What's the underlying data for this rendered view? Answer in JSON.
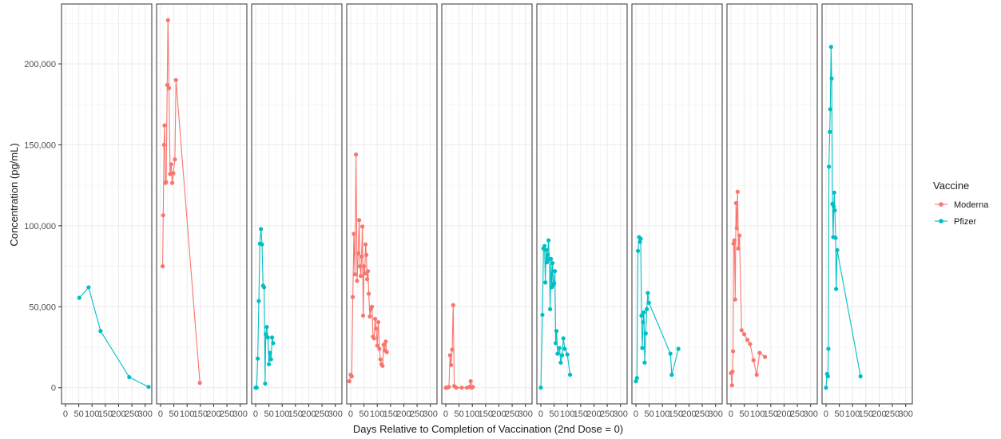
{
  "chart_data": {
    "type": "line",
    "xlabel": "Days Relative to Completion of Vaccination (2nd Dose = 0)",
    "ylabel": "Concentration (pg/mL)",
    "xlim": [
      -15,
      325
    ],
    "ylim": [
      -10000,
      237000
    ],
    "x_ticks": [
      0,
      50,
      100,
      150,
      200,
      250,
      300
    ],
    "y_ticks": [
      0,
      50000,
      100000,
      150000,
      200000
    ],
    "y_tick_labels": [
      "0",
      "50,000",
      "100,000",
      "150,000",
      "200,000"
    ],
    "x_tick_labels": [
      "0",
      "50",
      "100",
      "150",
      "200",
      "250",
      "300"
    ],
    "grid": true,
    "legend": {
      "title": "Vaccine",
      "position": "right",
      "entries": [
        {
          "label": "Moderna",
          "color": "#F8766D"
        },
        {
          "label": "Pfizer",
          "color": "#00BFC4"
        }
      ]
    },
    "panels": [
      {
        "vaccine": "Pfizer",
        "points": [
          [
            52,
            55500
          ],
          [
            87,
            62000
          ],
          [
            132,
            35000
          ],
          [
            240,
            6500
          ],
          [
            313,
            500
          ]
        ]
      },
      {
        "vaccine": "Moderna",
        "points": [
          [
            8,
            75000
          ],
          [
            10,
            106500
          ],
          [
            13,
            150000
          ],
          [
            15,
            162000
          ],
          [
            18,
            126500
          ],
          [
            21,
            127000
          ],
          [
            25,
            187000
          ],
          [
            28,
            227000
          ],
          [
            32,
            185000
          ],
          [
            36,
            132000
          ],
          [
            40,
            138000
          ],
          [
            44,
            126500
          ],
          [
            48,
            132500
          ],
          [
            54,
            141000
          ],
          [
            58,
            190000
          ],
          [
            148,
            3000
          ]
        ]
      },
      {
        "vaccine": "Pfizer",
        "points": [
          [
            0,
            0
          ],
          [
            4,
            0
          ],
          [
            8,
            18000
          ],
          [
            12,
            53500
          ],
          [
            16,
            89000
          ],
          [
            20,
            98000
          ],
          [
            24,
            88500
          ],
          [
            28,
            63000
          ],
          [
            32,
            62000
          ],
          [
            36,
            2500
          ],
          [
            38,
            33000
          ],
          [
            42,
            37500
          ],
          [
            46,
            31000
          ],
          [
            50,
            14500
          ],
          [
            54,
            21500
          ],
          [
            58,
            17500
          ],
          [
            62,
            31000
          ],
          [
            66,
            27500
          ]
        ]
      },
      {
        "vaccine": "Moderna",
        "points": [
          [
            -5,
            4000
          ],
          [
            0,
            8000
          ],
          [
            4,
            7000
          ],
          [
            8,
            56000
          ],
          [
            12,
            95000
          ],
          [
            16,
            70000
          ],
          [
            20,
            144000
          ],
          [
            24,
            66000
          ],
          [
            28,
            83000
          ],
          [
            32,
            103500
          ],
          [
            35,
            75000
          ],
          [
            38,
            69000
          ],
          [
            41,
            81000
          ],
          [
            44,
            99500
          ],
          [
            47,
            44500
          ],
          [
            50,
            75000
          ],
          [
            53,
            70500
          ],
          [
            56,
            88500
          ],
          [
            59,
            82000
          ],
          [
            62,
            67000
          ],
          [
            65,
            72000
          ],
          [
            68,
            58000
          ],
          [
            72,
            44000
          ],
          [
            76,
            48500
          ],
          [
            80,
            50000
          ],
          [
            84,
            31500
          ],
          [
            88,
            30500
          ],
          [
            92,
            42500
          ],
          [
            96,
            36500
          ],
          [
            100,
            26000
          ],
          [
            104,
            40500
          ],
          [
            108,
            24000
          ],
          [
            112,
            17500
          ],
          [
            116,
            14500
          ],
          [
            120,
            13500
          ],
          [
            124,
            26500
          ],
          [
            128,
            23000
          ],
          [
            132,
            28500
          ],
          [
            136,
            22000
          ]
        ]
      },
      {
        "vaccine": "Moderna",
        "points": [
          [
            0,
            0
          ],
          [
            6,
            0
          ],
          [
            12,
            500
          ],
          [
            16,
            20000
          ],
          [
            20,
            14000
          ],
          [
            24,
            23500
          ],
          [
            28,
            51000
          ],
          [
            32,
            1000
          ],
          [
            40,
            0
          ],
          [
            60,
            0
          ],
          [
            80,
            0
          ],
          [
            90,
            500
          ],
          [
            94,
            4000
          ],
          [
            98,
            0
          ],
          [
            102,
            500
          ]
        ]
      },
      {
        "vaccine": "Pfizer",
        "points": [
          [
            0,
            0
          ],
          [
            6,
            45000
          ],
          [
            10,
            86000
          ],
          [
            14,
            87500
          ],
          [
            17,
            65000
          ],
          [
            20,
            85000
          ],
          [
            23,
            77500
          ],
          [
            26,
            82000
          ],
          [
            29,
            91000
          ],
          [
            32,
            79500
          ],
          [
            35,
            48500
          ],
          [
            38,
            79500
          ],
          [
            41,
            62000
          ],
          [
            44,
            77000
          ],
          [
            47,
            63500
          ],
          [
            50,
            64500
          ],
          [
            53,
            72000
          ],
          [
            56,
            27500
          ],
          [
            59,
            35000
          ],
          [
            63,
            21000
          ],
          [
            70,
            24500
          ],
          [
            75,
            15500
          ],
          [
            80,
            20000
          ],
          [
            85,
            30500
          ],
          [
            90,
            24000
          ],
          [
            100,
            20500
          ],
          [
            110,
            8000
          ]
        ]
      },
      {
        "vaccine": "Pfizer",
        "points": [
          [
            0,
            4000
          ],
          [
            4,
            6000
          ],
          [
            8,
            84500
          ],
          [
            12,
            93000
          ],
          [
            15,
            90000
          ],
          [
            18,
            92000
          ],
          [
            21,
            44500
          ],
          [
            24,
            24500
          ],
          [
            27,
            40500
          ],
          [
            30,
            46500
          ],
          [
            33,
            15500
          ],
          [
            37,
            33500
          ],
          [
            41,
            48500
          ],
          [
            45,
            58500
          ],
          [
            49,
            52500
          ],
          [
            130,
            21000
          ],
          [
            135,
            8000
          ],
          [
            160,
            24000
          ]
        ]
      },
      {
        "vaccine": "Moderna",
        "points": [
          [
            0,
            9000
          ],
          [
            4,
            1500
          ],
          [
            6,
            10000
          ],
          [
            8,
            22500
          ],
          [
            10,
            89000
          ],
          [
            13,
            91000
          ],
          [
            16,
            54500
          ],
          [
            19,
            114000
          ],
          [
            22,
            98500
          ],
          [
            25,
            121000
          ],
          [
            28,
            86000
          ],
          [
            32,
            94000
          ],
          [
            40,
            35500
          ],
          [
            50,
            33000
          ],
          [
            62,
            29500
          ],
          [
            72,
            27000
          ],
          [
            85,
            17000
          ],
          [
            97,
            8000
          ],
          [
            108,
            21500
          ],
          [
            128,
            19000
          ]
        ]
      },
      {
        "vaccine": "Pfizer",
        "points": [
          [
            0,
            0
          ],
          [
            4,
            8500
          ],
          [
            7,
            7000
          ],
          [
            9,
            24000
          ],
          [
            11,
            136500
          ],
          [
            14,
            158000
          ],
          [
            16,
            172000
          ],
          [
            19,
            210500
          ],
          [
            21,
            191000
          ],
          [
            24,
            113500
          ],
          [
            27,
            93000
          ],
          [
            29,
            112000
          ],
          [
            31,
            120500
          ],
          [
            33,
            109500
          ],
          [
            36,
            92500
          ],
          [
            38,
            61000
          ],
          [
            42,
            85000
          ],
          [
            130,
            7000
          ]
        ]
      }
    ]
  }
}
